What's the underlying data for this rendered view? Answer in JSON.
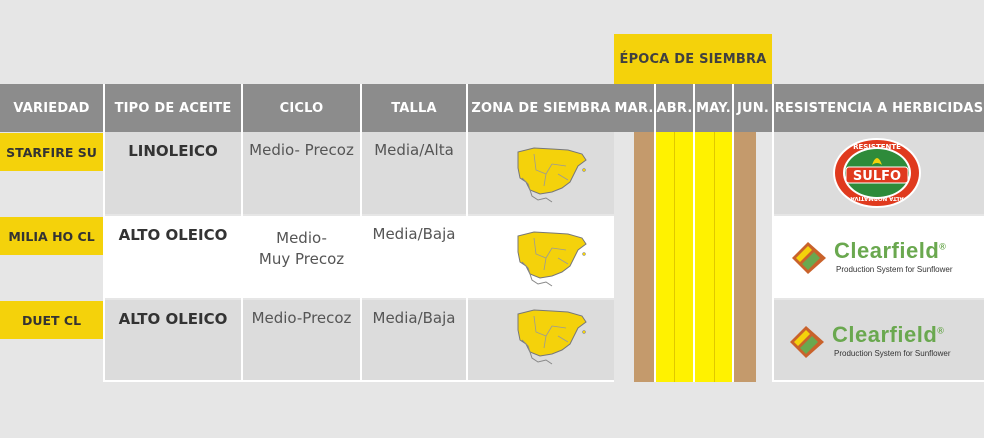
{
  "header": {
    "epoca": "ÉPOCA DE SIEMBRA",
    "columns": [
      "VARIEDAD",
      "TIPO DE ACEITE",
      "CICLO",
      "TALLA",
      "ZONA DE SIEMBRA"
    ],
    "months": [
      "MAR.",
      "ABR.",
      "MAY.",
      "JUN."
    ],
    "resistencia": "RESISTENCIA A HERBICIDAS"
  },
  "rows": [
    {
      "variedad": "STARFIRE SU",
      "aceite": "LINOLEICO",
      "ciclo_1": "Medio- Precoz",
      "ciclo_2": "",
      "talla": "Media/Alta",
      "herbicida": "sulfo"
    },
    {
      "variedad": "MILIA HO CL",
      "aceite": "ALTO OLEICO",
      "ciclo_1": "Medio-",
      "ciclo_2": "Muy Precoz",
      "talla": "Media/Baja",
      "herbicida": "clearfield"
    },
    {
      "variedad": "DUET CL",
      "aceite": "ALTO OLEICO",
      "ciclo_1": "Medio-Precoz",
      "ciclo_2": "",
      "talla": "Media/Baja",
      "herbicida": "clearfield"
    }
  ],
  "logos": {
    "sulfo_top": "RESISTENTE",
    "sulfo_main": "SULFO",
    "sulfo_bottom": "ALTA NORMATIVA",
    "clearfield_name": "Clearfield",
    "clearfield_reg": "®",
    "clearfield_tagline": "Production System for Sunflower"
  },
  "colors": {
    "yellow": "#f4d20b",
    "header_grey": "#8c8c8c",
    "row_grey": "#dcdcdc",
    "tan": "#c49a6c",
    "clearfield_green": "#6aa84f"
  }
}
